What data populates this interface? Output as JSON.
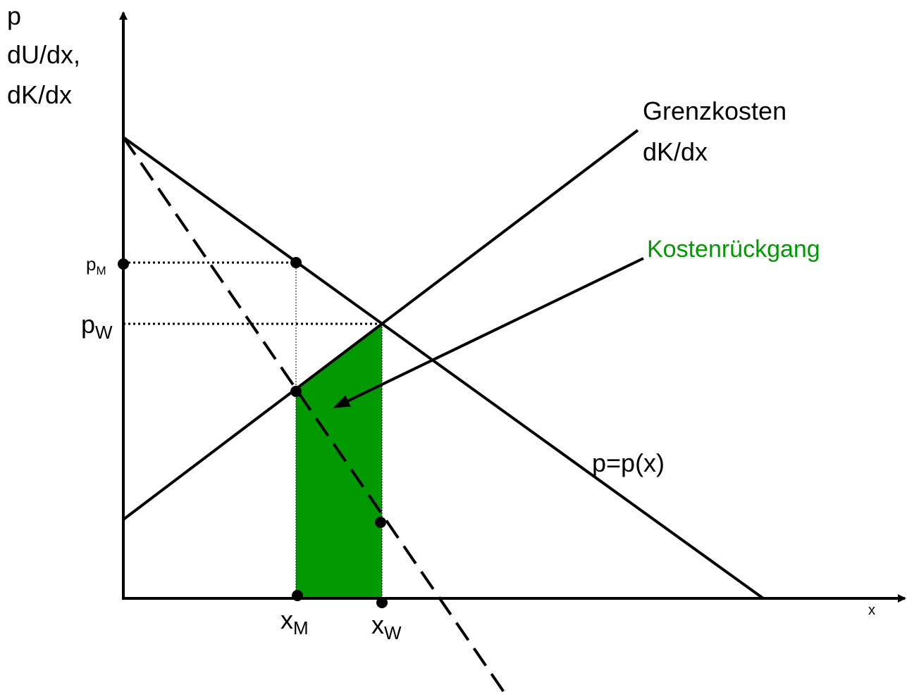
{
  "axis_label_y": [
    "p",
    "dU/dx,",
    "dK/dx"
  ],
  "axis_label_x": "x",
  "marginal_cost_label": [
    "Grenzkosten",
    "dK/dx"
  ],
  "cost_reduction_label": "Kostenrückgang",
  "demand_label": "p=p(x)",
  "price_monopoly": {
    "main": "p",
    "sub": "M"
  },
  "price_welfare": {
    "main": "p",
    "sub": "W"
  },
  "quantity_monopoly": {
    "main": "x",
    "sub": "M"
  },
  "quantity_welfare": {
    "main": "x",
    "sub": "W"
  }
}
